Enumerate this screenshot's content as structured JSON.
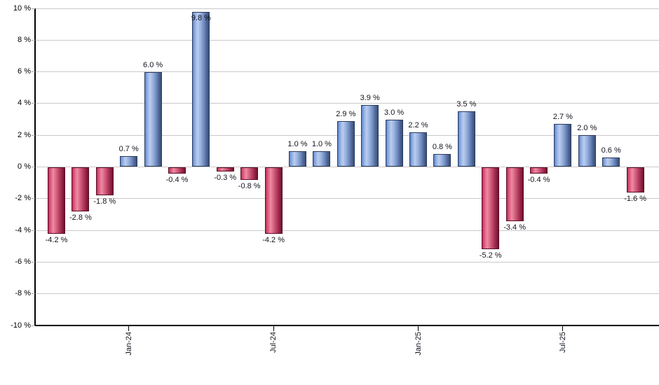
{
  "chart_data": {
    "type": "bar",
    "title": "",
    "xlabel": "",
    "ylabel": "",
    "value_suffix": " %",
    "values": [
      -4.2,
      -2.8,
      -1.8,
      0.7,
      6.0,
      -0.4,
      9.8,
      -0.3,
      -0.8,
      -4.2,
      1.0,
      1.0,
      2.9,
      3.9,
      3.0,
      2.2,
      0.8,
      3.5,
      -5.2,
      -3.4,
      -0.4,
      2.7,
      2.0,
      0.6,
      -1.6
    ],
    "bar_count": 25,
    "x_ticks": [
      {
        "index": 3,
        "label": "Jan-24"
      },
      {
        "index": 9,
        "label": "Jul-24"
      },
      {
        "index": 15,
        "label": "Jan-25"
      },
      {
        "index": 21,
        "label": "Jul-25"
      }
    ],
    "y_ticks": [
      10,
      8,
      6,
      4,
      2,
      0,
      -2,
      -4,
      -6,
      -8,
      -10
    ],
    "y_tick_labels": [
      "10 %",
      "8 %",
      "6 %",
      "4 %",
      "2 %",
      "0 %",
      "-2 %",
      "-4 %",
      "-6 %",
      "-8 %",
      "-10 %"
    ],
    "ylim": [
      -10,
      10
    ],
    "grid": true,
    "legend": "none",
    "colors": {
      "positive_bar": "#8aaae4",
      "positive_bar_highlight": "#bccdee",
      "positive_bar_shadow": "#3a4f78",
      "negative_bar": "#d9567b",
      "negative_bar_highlight": "#ef8aa4",
      "negative_bar_shadow": "#701030",
      "grid_line": "#c9c9c9",
      "axis_line": "#000000",
      "value_label_text": "#14141e",
      "background": "#ffffff"
    }
  }
}
